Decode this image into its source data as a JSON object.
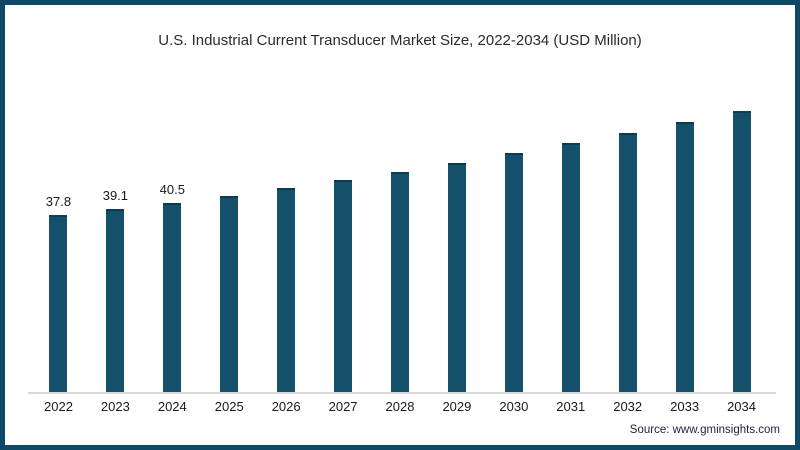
{
  "colors": {
    "frame_border": "#0e4a66",
    "bar": "#15506a",
    "bar_top_edge": "#0b3c52",
    "axis_line": "#d9d9d9",
    "title_text": "#2b2b2b",
    "label_text": "#1a1a1a",
    "source_text": "#1b2340",
    "background": "#ffffff"
  },
  "footer": {
    "source": "Source: www.gminsights.com"
  },
  "chart_data": {
    "type": "bar",
    "title": "U.S. Industrial Current Transducer Market Size, 2022-2034 (USD Million)",
    "xlabel": "",
    "ylabel": "",
    "units": "USD Million",
    "ylim": [
      0,
      62
    ],
    "grid": false,
    "legend": false,
    "categories": [
      "2022",
      "2023",
      "2024",
      "2025",
      "2026",
      "2027",
      "2028",
      "2029",
      "2030",
      "2031",
      "2032",
      "2033",
      "2034"
    ],
    "values": [
      37.8,
      39.1,
      40.5,
      41.9,
      43.6,
      45.3,
      47.1,
      48.9,
      51.0,
      53.1,
      55.3,
      57.6,
      60.1
    ],
    "data_labels": [
      "37.8",
      "39.1",
      "40.5",
      "",
      "",
      "",
      "",
      "",
      "",
      "",
      "",
      "",
      ""
    ]
  }
}
